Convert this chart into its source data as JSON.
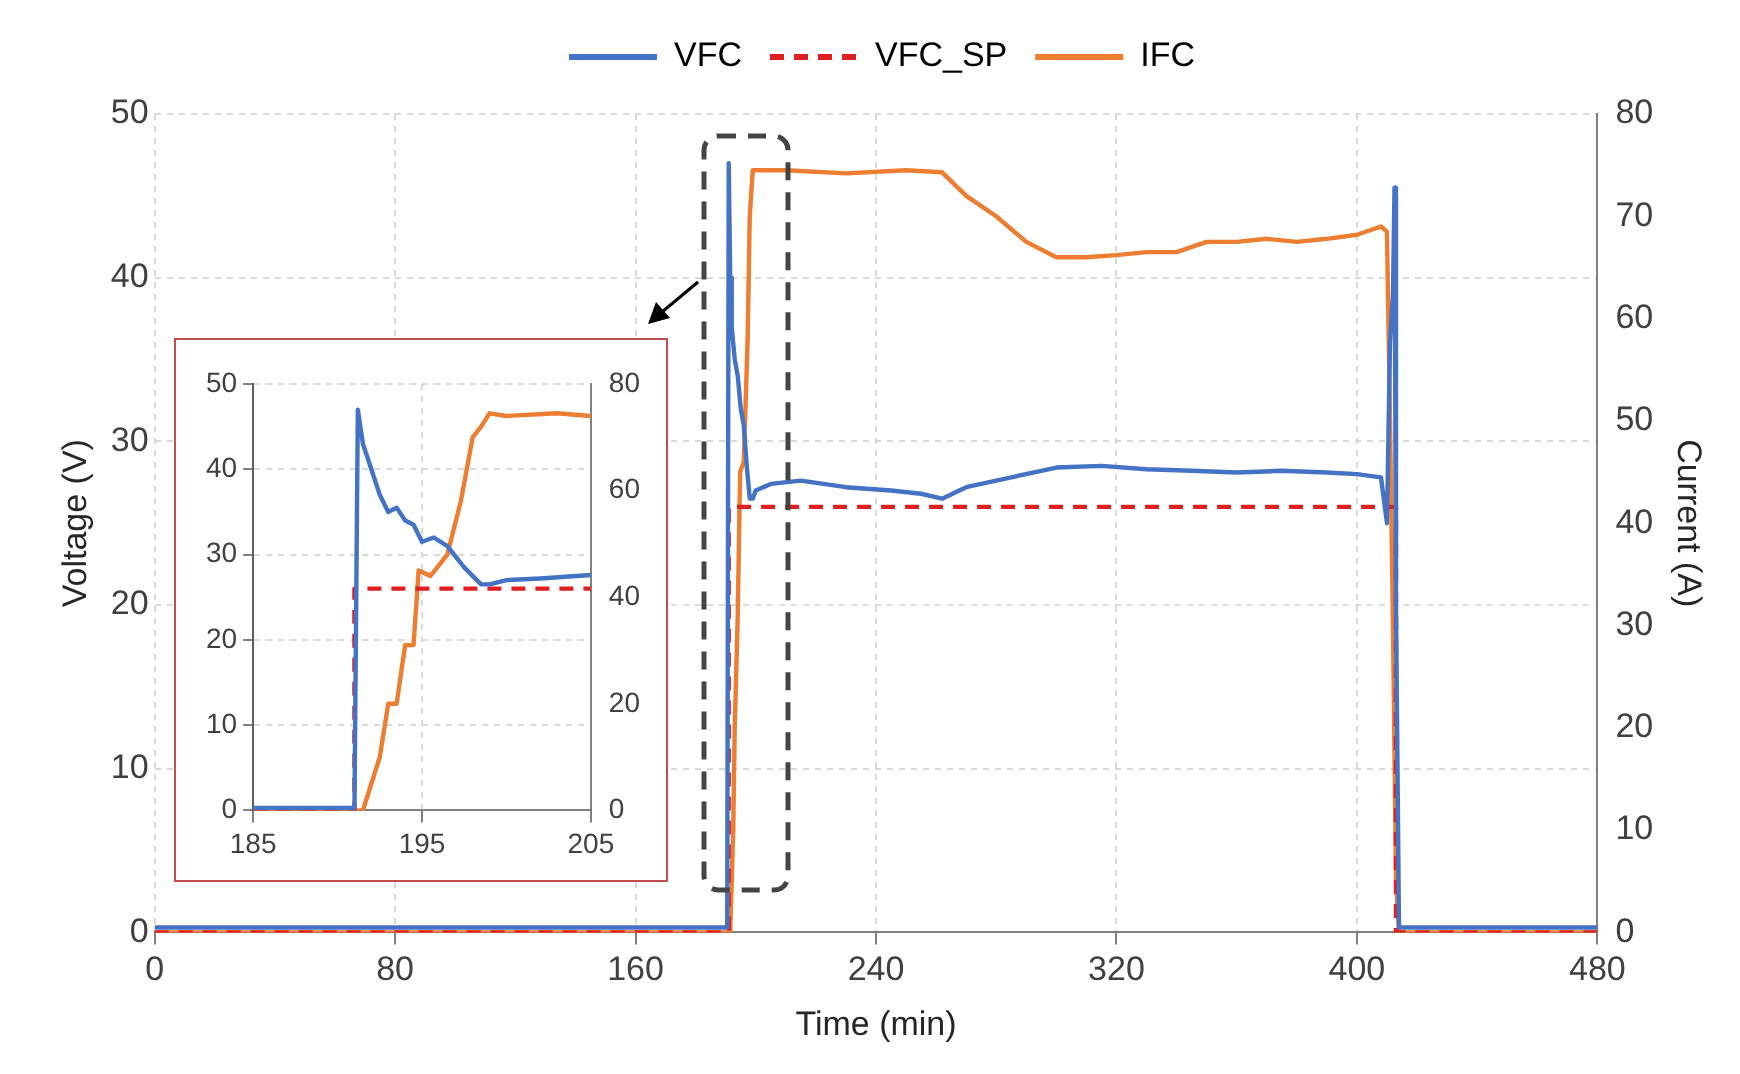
{
  "chart_data": [
    {
      "type": "line",
      "xlabel": "Time (min)",
      "ylabel": "Voltage (V)",
      "y2label": "Current (A)",
      "xlim": [
        0,
        480
      ],
      "xticks": [
        0,
        80,
        160,
        240,
        320,
        400,
        480
      ],
      "ylim": [
        0,
        50
      ],
      "yticks": [
        0,
        10,
        20,
        30,
        40,
        50
      ],
      "y2lim": [
        0,
        80
      ],
      "y2ticks": [
        0,
        10,
        20,
        30,
        40,
        50,
        60,
        70,
        80
      ],
      "grid": true,
      "legend": "top",
      "marker": "none",
      "series": [
        {
          "name": "VFC",
          "color": "#4472c4",
          "line_style": "solid",
          "x": [
            0,
            190.5,
            191,
            191.5,
            192,
            193,
            194,
            195,
            196,
            197,
            198,
            199,
            200,
            205,
            215,
            230,
            245,
            255,
            262,
            270,
            285,
            300,
            315,
            330,
            345,
            360,
            375,
            390,
            400,
            408,
            410,
            411,
            412,
            412.5,
            413,
            414,
            480
          ],
          "values": [
            0.3,
            0.3,
            47,
            40,
            37,
            35,
            34,
            32,
            31,
            28.5,
            26.5,
            26.5,
            27,
            27.4,
            27.6,
            27.2,
            27,
            26.8,
            26.5,
            27.2,
            27.8,
            28.4,
            28.5,
            28.3,
            28.2,
            28.1,
            28.2,
            28.1,
            28,
            27.8,
            25,
            36,
            39,
            45.5,
            20,
            0.3,
            0.3
          ]
        },
        {
          "name": "VFC_SP",
          "color": "#e02020",
          "line_style": "dashed",
          "x": [
            0,
            191,
            191,
            413,
            413,
            480
          ],
          "values": [
            0,
            0,
            26,
            26,
            0,
            0
          ]
        },
        {
          "name": "IFC",
          "color": "#ed7d31",
          "line_style": "solid",
          "axis": "y2",
          "x": [
            0,
            191.5,
            192.5,
            193,
            194,
            194.8,
            196,
            197.3,
            198,
            199,
            210,
            230,
            250,
            262,
            270,
            280,
            290,
            300,
            310,
            320,
            330,
            340,
            350,
            360,
            370,
            380,
            390,
            400,
            408,
            410,
            411,
            412,
            413,
            414,
            480
          ],
          "values": [
            0,
            0,
            10,
            20,
            31,
            45,
            46,
            58,
            70,
            74.5,
            74.5,
            74.2,
            74.5,
            74.3,
            72,
            70,
            67.5,
            66,
            66,
            66.2,
            66.5,
            66.5,
            67.5,
            67.5,
            67.8,
            67.5,
            67.8,
            68.2,
            69,
            68.5,
            50,
            30,
            5,
            0,
            0
          ]
        }
      ]
    },
    {
      "type": "line",
      "xlim": [
        185,
        205
      ],
      "xticks": [
        185,
        195,
        205
      ],
      "ylim": [
        0,
        50
      ],
      "yticks": [
        0,
        10,
        20,
        30,
        40,
        50
      ],
      "y2lim": [
        0,
        80
      ],
      "y2ticks": [
        0,
        20,
        40,
        60,
        80
      ],
      "grid": true,
      "marker": "none",
      "series": [
        {
          "color": "#4472c4",
          "line_style": "solid",
          "x": [
            185,
            191,
            191.2,
            191.5,
            192,
            192.5,
            193,
            193.5,
            194,
            194.5,
            195,
            195.7,
            196.5,
            197.5,
            198.5,
            199,
            200,
            202,
            205
          ],
          "values": [
            0.3,
            0.3,
            47,
            43,
            40,
            37,
            35,
            35.5,
            34,
            33.5,
            31.5,
            32,
            31,
            28.5,
            26.5,
            26.5,
            27,
            27.2,
            27.6
          ]
        },
        {
          "color": "#e02020",
          "line_style": "dashed",
          "x": [
            185,
            191,
            191,
            205
          ],
          "values": [
            0,
            0,
            26,
            26
          ]
        },
        {
          "color": "#ed7d31",
          "line_style": "solid",
          "axis": "y2",
          "x": [
            185,
            191.5,
            192,
            192.5,
            193,
            193.5,
            194,
            194.5,
            194.8,
            195.5,
            196.5,
            197.3,
            198,
            198.5,
            199,
            200,
            203,
            205
          ],
          "values": [
            0,
            0,
            5,
            10,
            20,
            20,
            31,
            31,
            45,
            44,
            48,
            58,
            70,
            72,
            74.5,
            74,
            74.5,
            74
          ]
        }
      ]
    }
  ]
}
